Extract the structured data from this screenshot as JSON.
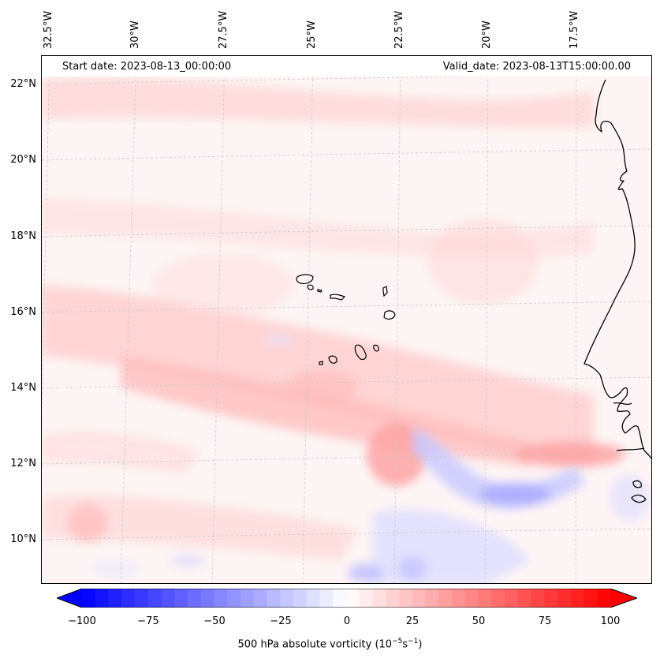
{
  "map": {
    "start_date": "Start date: 2023-08-13_00:00:00",
    "valid_date": "Valid_date: 2023-08-13T15:00:00.00",
    "lon_labels": [
      "32.5°W",
      "30°W",
      "27.5°W",
      "25°W",
      "22.5°W",
      "20°W",
      "17.5°W"
    ],
    "lat_labels": [
      "22°N",
      "20°N",
      "18°N",
      "16°N",
      "14°N",
      "12°N",
      "10°N"
    ],
    "colors": {
      "positive": "#ff0000",
      "negative": "#0000ff",
      "neutral": "#ffffff",
      "coast": "#000000",
      "grid": "#c8c8c8"
    }
  },
  "colorbar": {
    "ticks": [
      "−100",
      "−75",
      "−50",
      "−25",
      "0",
      "25",
      "50",
      "75",
      "100"
    ],
    "title_prefix": "500 hPa absolute vorticity (10",
    "title_exp1": "−5",
    "title_mid": "s",
    "title_exp2": "−1",
    "title_suffix": ")"
  }
}
